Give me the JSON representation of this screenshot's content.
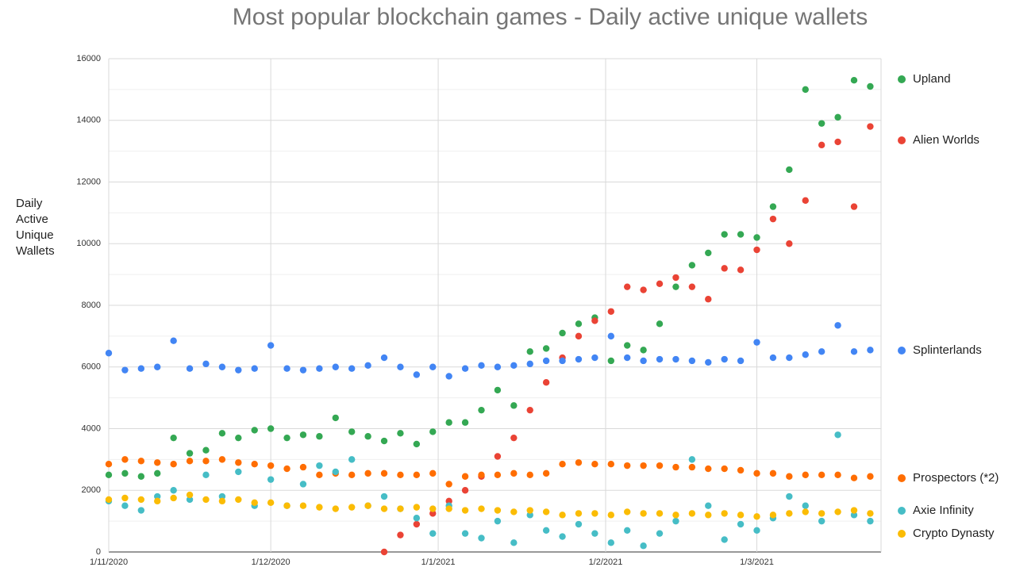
{
  "chart_data": {
    "type": "scatter",
    "title": "Most popular blockchain games - Daily active unique wallets",
    "y_label": "Daily Active Unique Wallets",
    "x": [
      "1/11/2020",
      "4/11/2020",
      "7/11/2020",
      "10/11/2020",
      "13/11/2020",
      "16/11/2020",
      "19/11/2020",
      "22/11/2020",
      "25/11/2020",
      "28/11/2020",
      "1/12/2020",
      "4/12/2020",
      "7/12/2020",
      "10/12/2020",
      "13/12/2020",
      "16/12/2020",
      "19/12/2020",
      "22/12/2020",
      "25/12/2020",
      "28/12/2020",
      "31/12/2020",
      "3/1/2021",
      "6/1/2021",
      "9/1/2021",
      "12/1/2021",
      "15/1/2021",
      "18/1/2021",
      "21/1/2021",
      "24/1/2021",
      "27/1/2021",
      "30/1/2021",
      "2/2/2021",
      "5/2/2021",
      "8/2/2021",
      "11/2/2021",
      "14/2/2021",
      "17/2/2021",
      "20/2/2021",
      "23/2/2021",
      "26/2/2021",
      "1/3/2021",
      "4/3/2021",
      "7/3/2021",
      "10/3/2021",
      "13/3/2021",
      "16/3/2021",
      "19/3/2021",
      "22/3/2021"
    ],
    "xlim": [
      "1/11/2020",
      "24/3/2021"
    ],
    "xticks": [
      "1/11/2020",
      "1/12/2020",
      "1/1/2021",
      "1/2/2021",
      "1/3/2021"
    ],
    "ylim": [
      0,
      16000
    ],
    "yticks": [
      0,
      2000,
      4000,
      6000,
      8000,
      10000,
      12000,
      14000,
      16000
    ],
    "grid": true,
    "legend": "right",
    "series": [
      {
        "name": "Upland",
        "color": "#34a853",
        "values": [
          2500,
          2550,
          2450,
          2550,
          3700,
          3200,
          3300,
          3850,
          3700,
          3950,
          4000,
          3700,
          3800,
          3750,
          4350,
          3900,
          3750,
          3600,
          3850,
          3500,
          3900,
          4200,
          4200,
          4600,
          5250,
          4750,
          6500,
          6600,
          7100,
          7400,
          7600,
          6200,
          6700,
          6550,
          7400,
          8600,
          9300,
          9700,
          10300,
          10300,
          10200,
          11200,
          12400,
          15000,
          13900,
          14100,
          15300,
          15100
        ]
      },
      {
        "name": "Alien Worlds",
        "color": "#ea4335",
        "values": [
          null,
          null,
          null,
          null,
          null,
          null,
          null,
          null,
          null,
          null,
          null,
          null,
          null,
          null,
          null,
          null,
          null,
          0,
          550,
          900,
          1250,
          1650,
          2000,
          2450,
          3100,
          3700,
          4600,
          5500,
          6300,
          7000,
          7500,
          7800,
          8600,
          8500,
          8700,
          8900,
          8600,
          8200,
          9200,
          9150,
          9800,
          10800,
          10000,
          11400,
          13200,
          13300,
          11200,
          13800
        ]
      },
      {
        "name": "Splinterlands",
        "color": "#4285f4",
        "values": [
          6450,
          5900,
          5950,
          6000,
          6850,
          5950,
          6100,
          6000,
          5900,
          5950,
          6700,
          5950,
          5900,
          5950,
          6000,
          5950,
          6050,
          6300,
          6000,
          5750,
          6000,
          5700,
          5950,
          6050,
          6000,
          6050,
          6100,
          6200,
          6200,
          6250,
          6300,
          7000,
          6300,
          6200,
          6250,
          6250,
          6200,
          6150,
          6250,
          6200,
          6800,
          6300,
          6300,
          6400,
          6500,
          7350,
          6500,
          6550
        ]
      },
      {
        "name": "Prospectors (*2)",
        "color": "#ff6d01",
        "values": [
          2850,
          3000,
          2950,
          2900,
          2850,
          2950,
          2950,
          3000,
          2900,
          2850,
          2800,
          2700,
          2750,
          2500,
          2550,
          2500,
          2550,
          2550,
          2500,
          2500,
          2550,
          2200,
          2450,
          2500,
          2500,
          2550,
          2500,
          2550,
          2850,
          2900,
          2850,
          2850,
          2800,
          2800,
          2800,
          2750,
          2750,
          2700,
          2700,
          2650,
          2550,
          2550,
          2450,
          2500,
          2500,
          2500,
          2400,
          2450
        ]
      },
      {
        "name": "Axie Infinity",
        "color": "#46bdc6",
        "values": [
          1650,
          1500,
          1350,
          1800,
          2000,
          1700,
          2500,
          1800,
          2600,
          1500,
          2350,
          1500,
          2200,
          2800,
          2600,
          3000,
          1500,
          1800,
          1400,
          1100,
          600,
          1500,
          600,
          450,
          1000,
          300,
          1200,
          700,
          500,
          900,
          600,
          300,
          700,
          200,
          600,
          1000,
          3000,
          1500,
          400,
          900,
          700,
          1100,
          1800,
          1500,
          1000,
          3800,
          1200,
          1000
        ]
      },
      {
        "name": "Crypto Dynasty",
        "color": "#fbbc04",
        "values": [
          1700,
          1750,
          1700,
          1650,
          1750,
          1850,
          1700,
          1650,
          1700,
          1600,
          1600,
          1500,
          1500,
          1450,
          1400,
          1450,
          1500,
          1400,
          1400,
          1450,
          1400,
          1400,
          1350,
          1400,
          1350,
          1300,
          1350,
          1300,
          1200,
          1250,
          1250,
          1200,
          1300,
          1250,
          1250,
          1200,
          1250,
          1200,
          1250,
          1200,
          1150,
          1200,
          1250,
          1300,
          1250,
          1300,
          1350,
          1250
        ]
      }
    ]
  }
}
